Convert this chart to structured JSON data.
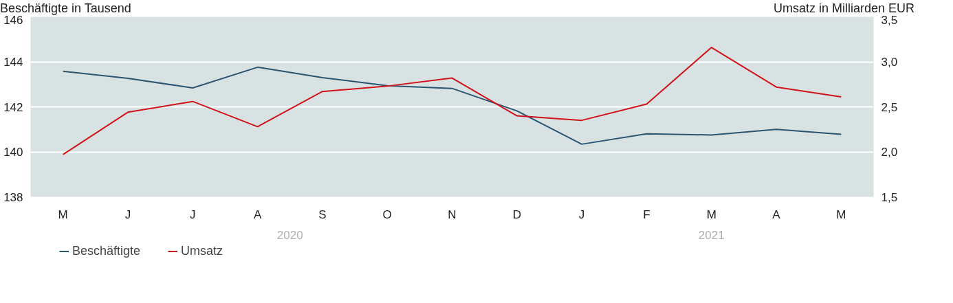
{
  "chart_data": {
    "type": "line",
    "ylabel": "Beschäftigte in Tausend",
    "y2label": "Umsatz in Milliarden EUR",
    "categories": [
      "M",
      "J",
      "J",
      "A",
      "S",
      "O",
      "N",
      "D",
      "J",
      "F",
      "M",
      "A",
      "M"
    ],
    "ylim": [
      138,
      146
    ],
    "yticks": [
      138,
      140,
      142,
      144,
      146
    ],
    "y2lim": [
      1.5,
      3.5
    ],
    "y2ticks": [
      {
        "value": 1.5,
        "label": "1,5"
      },
      {
        "value": 2.0,
        "label": "2,0"
      },
      {
        "value": 2.5,
        "label": "2,5"
      },
      {
        "value": 3.0,
        "label": "3,0"
      },
      {
        "value": 3.5,
        "label": "3,5"
      }
    ],
    "series": [
      {
        "name": "Beschäftigte",
        "color": "#2b5470",
        "values": [
          143.58,
          143.27,
          142.84,
          143.76,
          143.3,
          142.94,
          142.82,
          141.82,
          140.34,
          140.8,
          140.75,
          141.0,
          140.78
        ]
      },
      {
        "name": "Umsatz",
        "color": "#d0121b",
        "axis": "y2",
        "values": [
          1.97,
          2.44,
          2.56,
          2.28,
          2.67,
          2.73,
          2.82,
          2.4,
          2.35,
          2.53,
          3.16,
          2.72,
          2.61
        ]
      }
    ],
    "annotations": [
      "2020",
      "2021"
    ],
    "grid": "y",
    "legend": "bottom left",
    "line_style": "solid"
  }
}
